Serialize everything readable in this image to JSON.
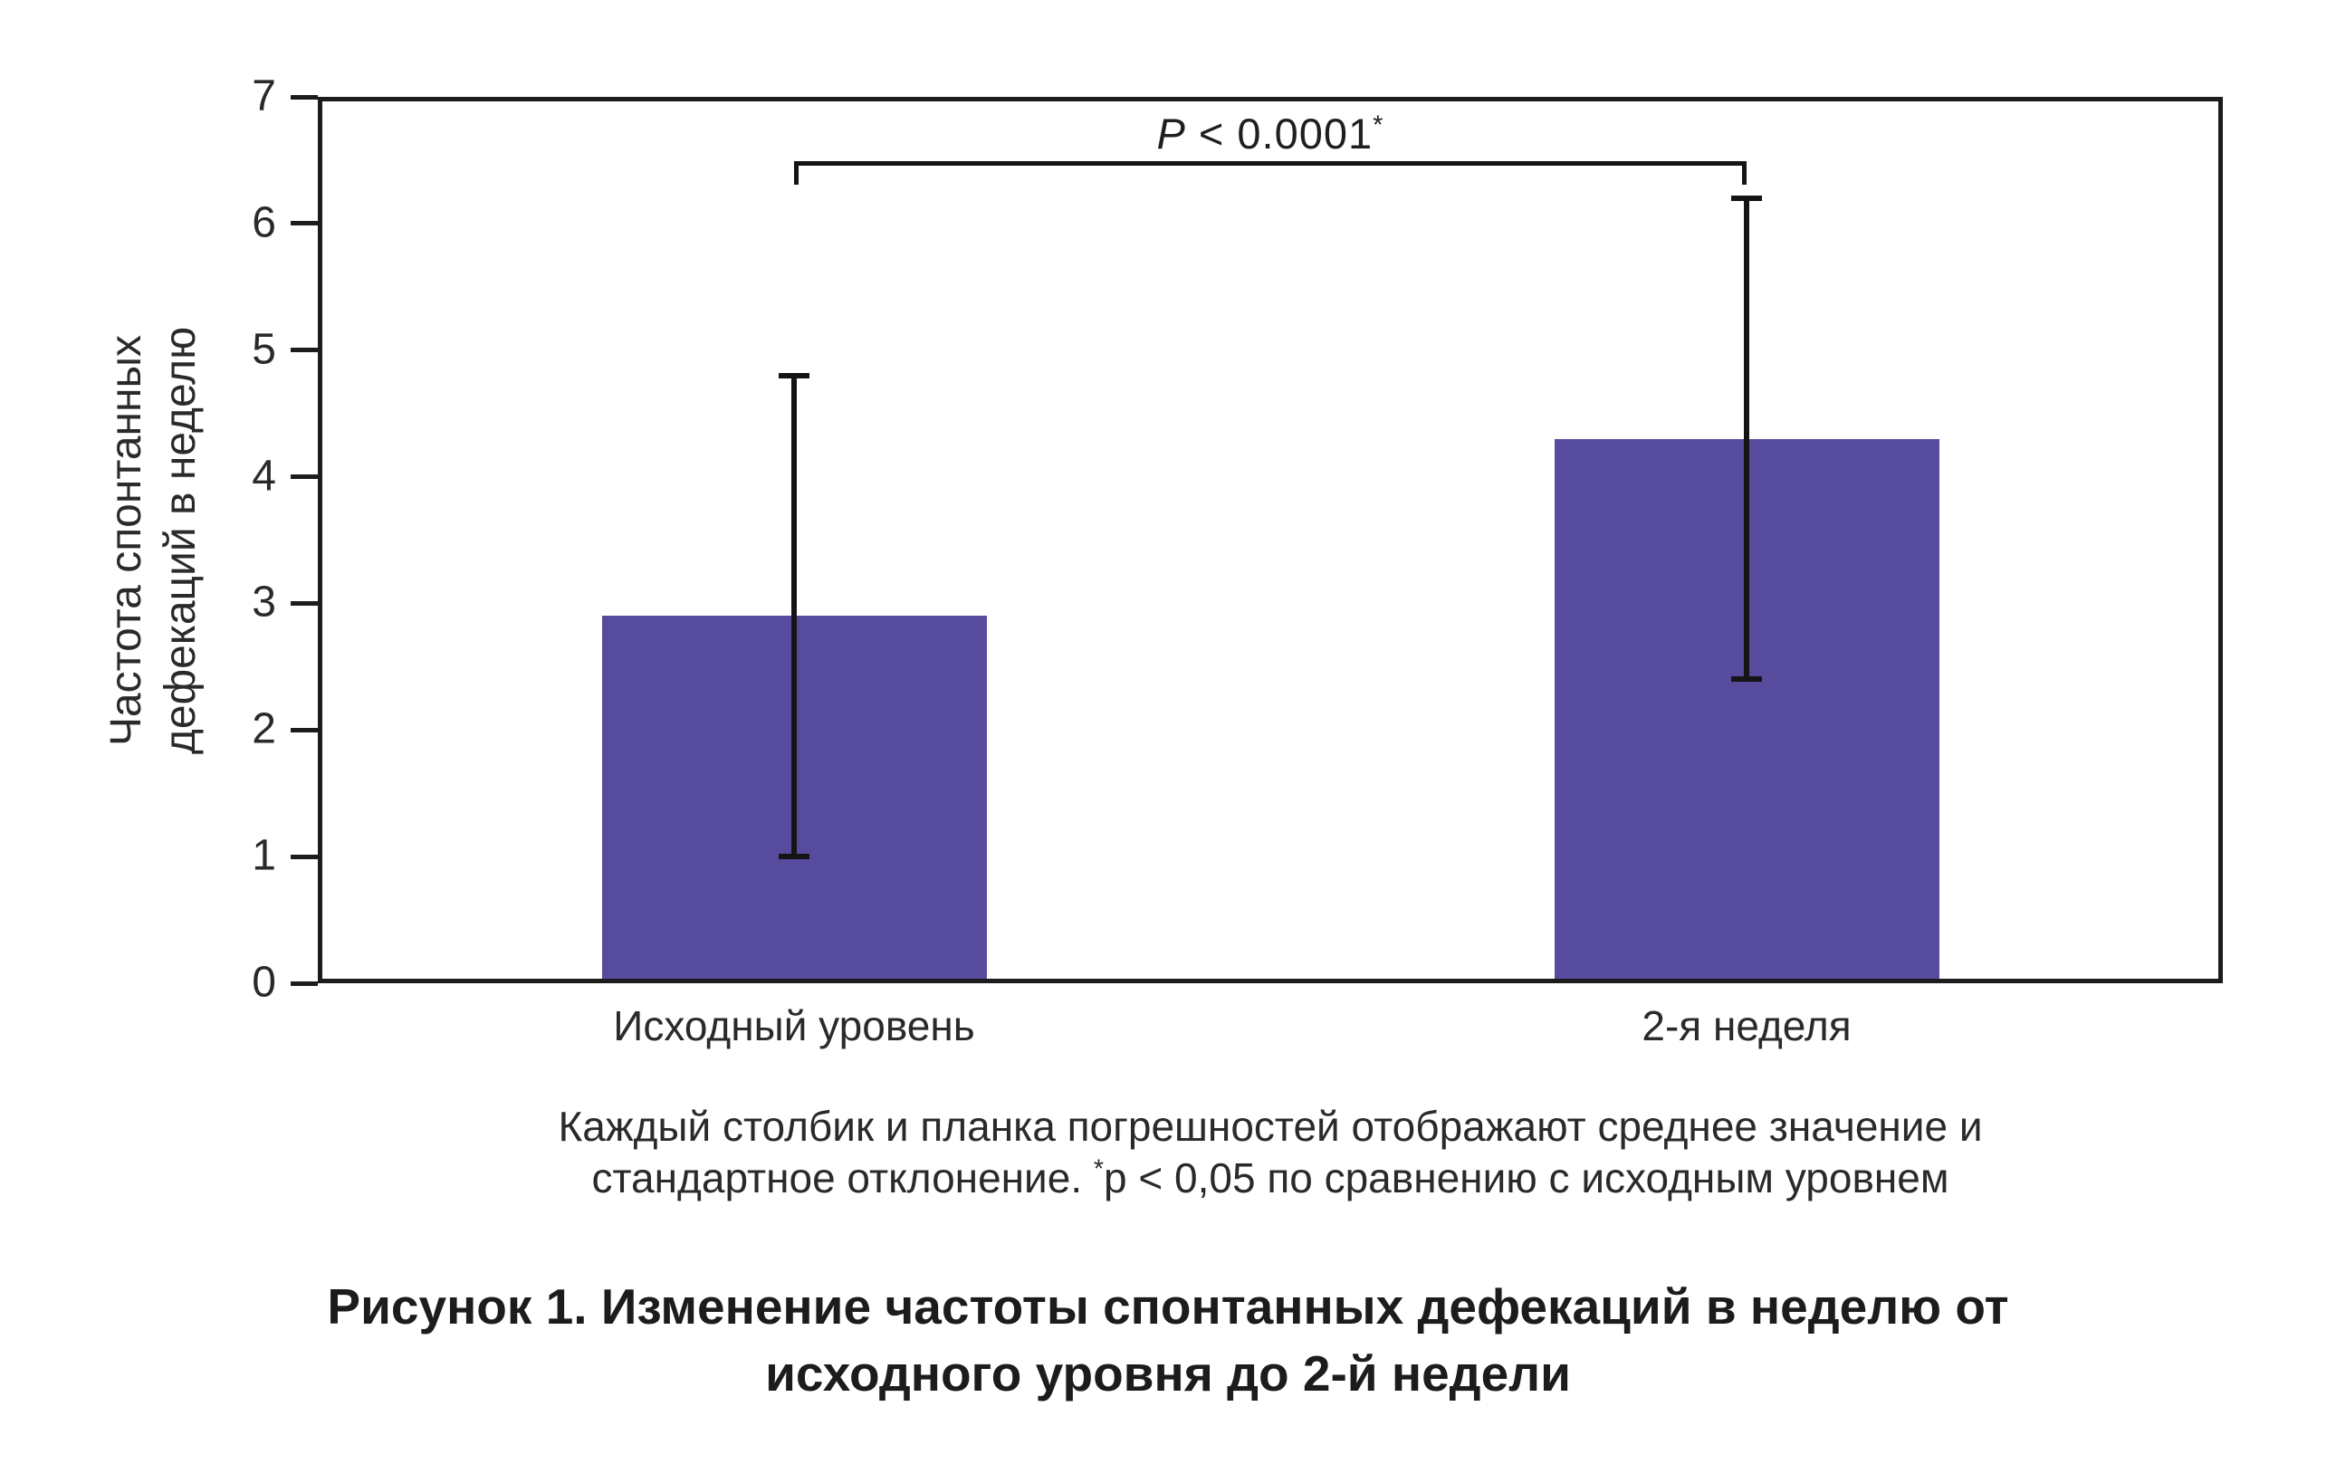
{
  "figure": {
    "caption_line1": "Каждый столбик и планка погрешностей отображают среднее значение и",
    "caption_line2_prefix": "стандартное отклонение. ",
    "caption_line2_sup": "*",
    "caption_line2_rest": "p < 0,05 по сравнению с исходным уровнем",
    "title_line1": "Рисунок 1. Изменение частоты спонтанных дефекаций в неделю от",
    "title_line2": "исходного уровня до 2-й недели"
  },
  "chart_data": {
    "type": "bar",
    "title": "Рисунок 1. Изменение частоты спонтанных дефекаций в неделю от исходного уровня до 2-й недели",
    "categories": [
      "Исходный уровень",
      "2-я неделя"
    ],
    "values": [
      2.9,
      4.3
    ],
    "error_lower": [
      1.0,
      2.4
    ],
    "error_upper": [
      4.8,
      6.2
    ],
    "ylabel": "Частота спонтанных дефекаций в неделю",
    "ylabel_lines": [
      "Частота спонтанных",
      "дефекаций в неделю"
    ],
    "xlabel": "",
    "ylim": [
      0,
      7
    ],
    "yticks": [
      0,
      1,
      2,
      3,
      4,
      5,
      6,
      7
    ],
    "grid": false,
    "legend": "none",
    "bar_color": "#574B9E",
    "axis_color": "#1c1c1c",
    "significance": {
      "p_symbol": "P",
      "comparison": " < 0.0001",
      "asterisk": "*",
      "between": [
        "Исходный уровень",
        "2-я неделя"
      ]
    }
  }
}
